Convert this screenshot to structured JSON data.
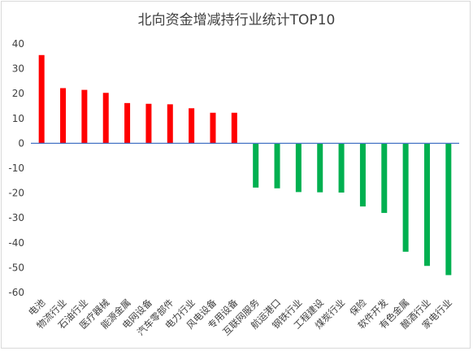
{
  "chart_data": {
    "type": "bar",
    "title": "北向资金增减持行业统计TOP10",
    "xlabel": "",
    "ylabel": "",
    "ylim": [
      -60,
      40
    ],
    "yticks": [
      40,
      30,
      20,
      10,
      0,
      -10,
      -20,
      -30,
      -40,
      -50,
      -60
    ],
    "grid": false,
    "legend": "none",
    "categories": [
      "电池",
      "物流行业",
      "石油行业",
      "医疗器械",
      "能源金属",
      "电网设备",
      "汽车零部件",
      "电力行业",
      "风电设备",
      "专用设备",
      "互联网服务",
      "航运港口",
      "钢铁行业",
      "工程建设",
      "煤炭行业",
      "保险",
      "软件开发",
      "有色金属",
      "酿酒行业",
      "家电行业"
    ],
    "values": [
      35.5,
      22.2,
      21.5,
      20.3,
      16.2,
      15.9,
      15.7,
      14.1,
      12.3,
      12.3,
      -17.8,
      -18.1,
      -19.6,
      -19.7,
      -19.8,
      -25.4,
      -28.0,
      -43.6,
      -49.3,
      -53.0
    ],
    "colors": {
      "positive": "#ff0000",
      "negative": "#00b050",
      "axis": "#4472c4"
    }
  }
}
